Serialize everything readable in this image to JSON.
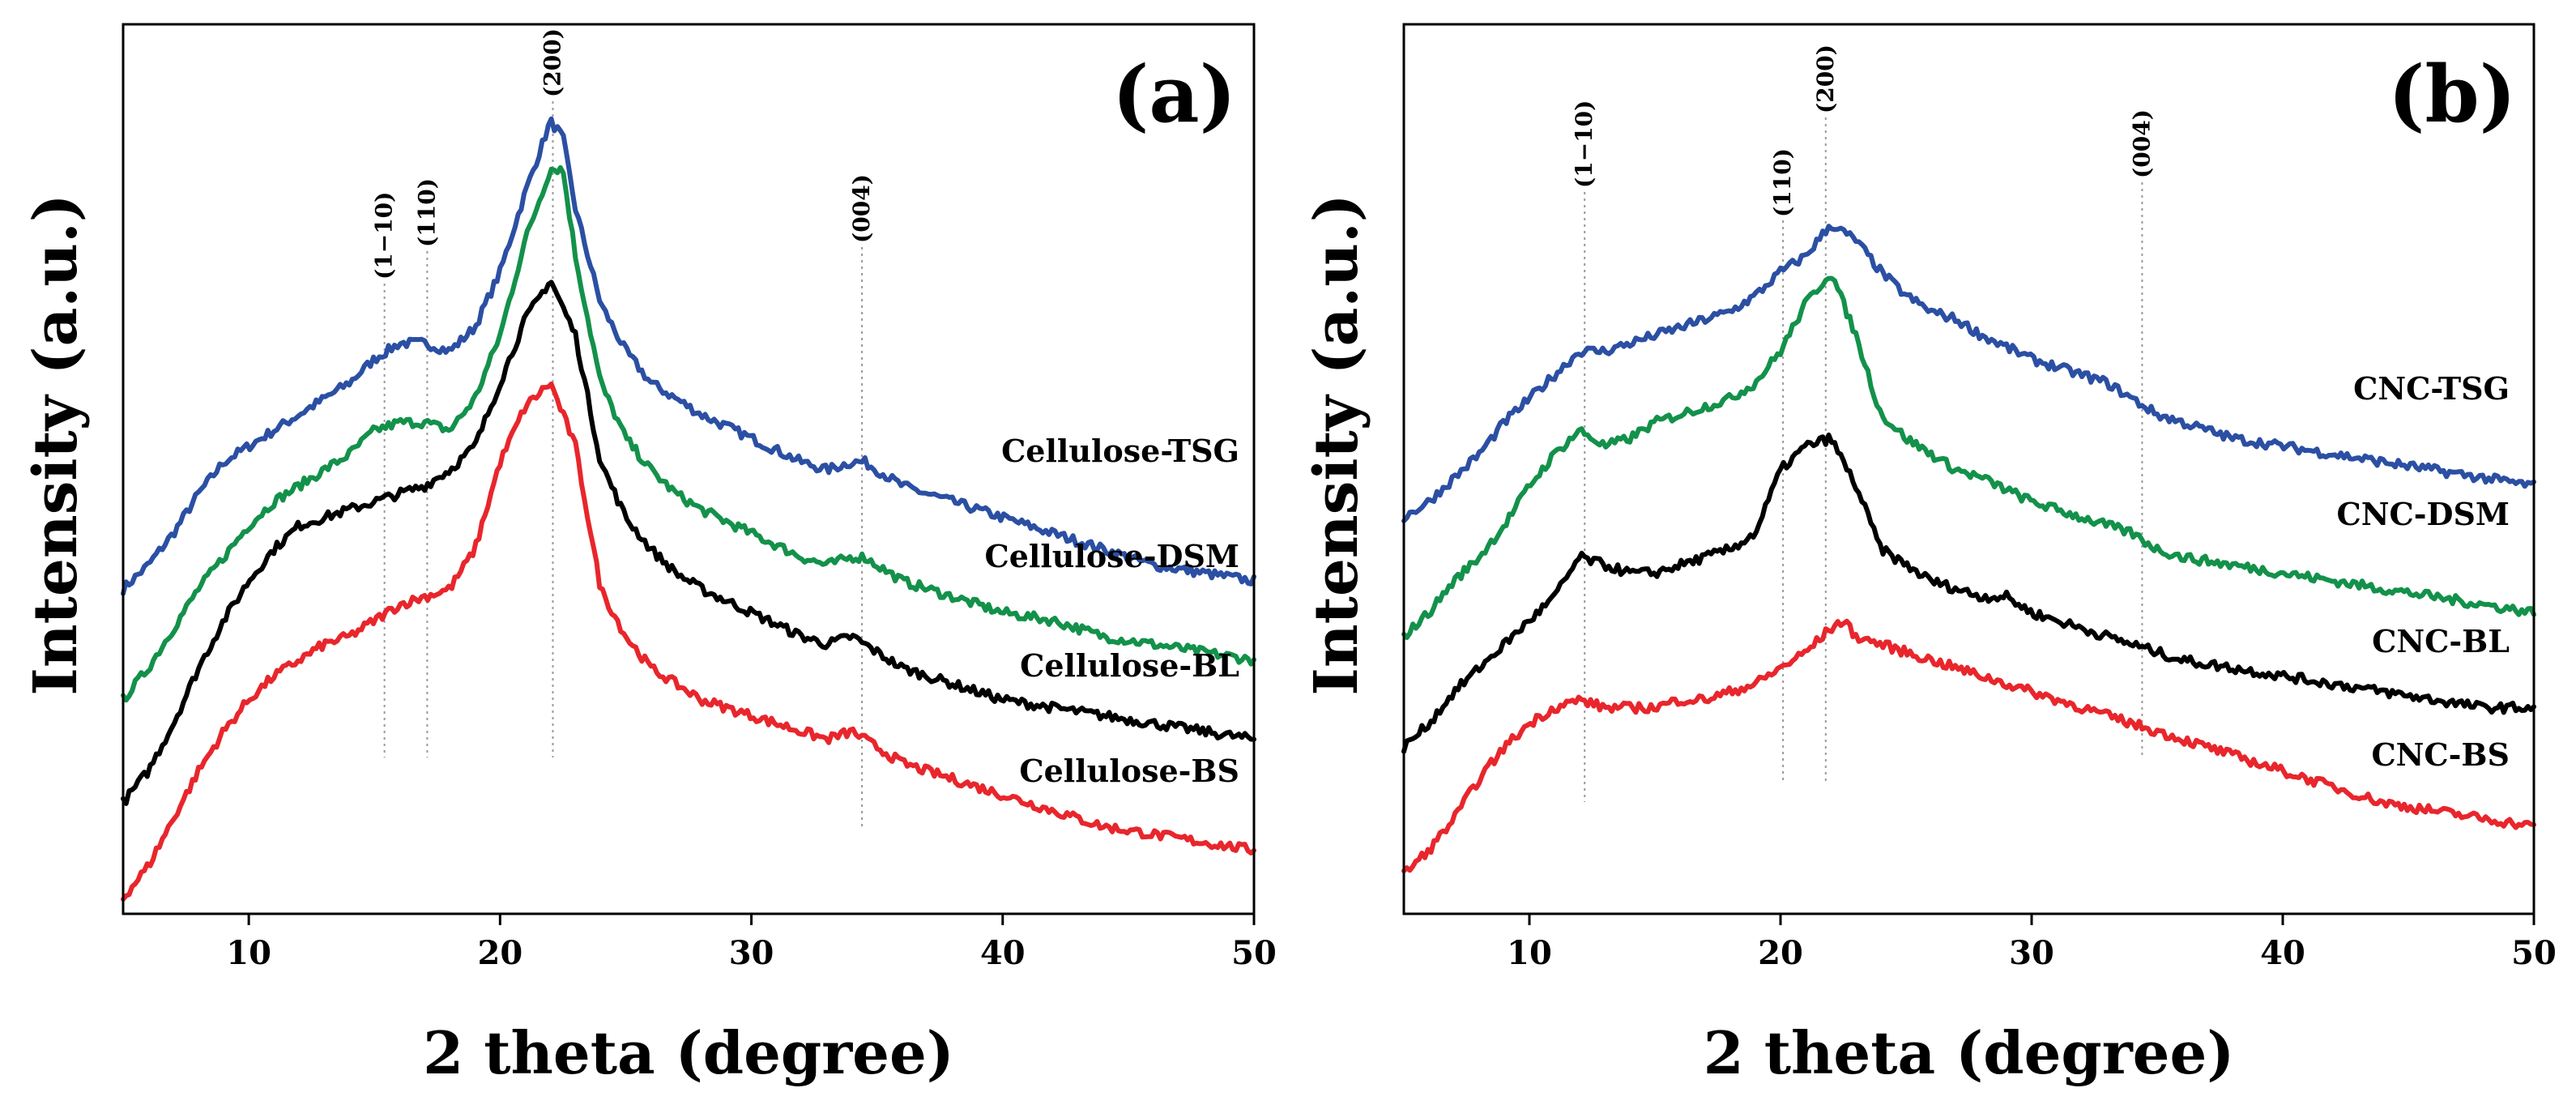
{
  "chart_data": [
    {
      "type": "line",
      "panel_label": "(a)",
      "xlabel": "2 theta (degree)",
      "ylabel": "Intensity (a.u.)",
      "xlim": [
        5,
        50
      ],
      "xticks": [
        10,
        20,
        30,
        40,
        50
      ],
      "reference_lines": [
        {
          "label": "(1−10)",
          "x": 15.4
        },
        {
          "label": "(110)",
          "x": 17.1
        },
        {
          "label": "(200)",
          "x": 22.1
        },
        {
          "label": "(004)",
          "x": 34.4
        }
      ],
      "series": [
        {
          "name": "Cellulose-TSG",
          "color": "#2b4fa3",
          "x": [
            5,
            6,
            7,
            8,
            9,
            10,
            11,
            12,
            13,
            14,
            15,
            16,
            17,
            18,
            19,
            20,
            21,
            22,
            22.5,
            23,
            24,
            25,
            26,
            27,
            28,
            30,
            32,
            33,
            34,
            34.5,
            35,
            36,
            38,
            40,
            42,
            44,
            46,
            48,
            50
          ],
          "y": [
            0.4,
            0.43,
            0.47,
            0.52,
            0.56,
            0.58,
            0.6,
            0.62,
            0.64,
            0.66,
            0.69,
            0.71,
            0.71,
            0.7,
            0.73,
            0.8,
            0.9,
            0.99,
            0.97,
            0.88,
            0.76,
            0.7,
            0.66,
            0.64,
            0.62,
            0.59,
            0.56,
            0.55,
            0.56,
            0.56,
            0.55,
            0.53,
            0.51,
            0.49,
            0.47,
            0.45,
            0.43,
            0.42,
            0.41
          ]
        },
        {
          "name": "Cellulose-DSM",
          "color": "#13914a",
          "x": [
            5,
            6,
            7,
            8,
            9,
            10,
            11,
            12,
            13,
            14,
            15,
            16,
            17,
            18,
            19,
            20,
            21,
            22,
            22.5,
            23,
            24,
            25,
            26,
            27,
            28,
            30,
            32,
            33,
            34,
            34.5,
            35,
            36,
            38,
            40,
            42,
            44,
            46,
            48,
            50
          ],
          "y": [
            0.26,
            0.3,
            0.35,
            0.4,
            0.44,
            0.48,
            0.51,
            0.53,
            0.55,
            0.57,
            0.6,
            0.61,
            0.61,
            0.6,
            0.64,
            0.72,
            0.84,
            0.93,
            0.93,
            0.82,
            0.66,
            0.59,
            0.55,
            0.52,
            0.5,
            0.47,
            0.44,
            0.43,
            0.44,
            0.44,
            0.43,
            0.41,
            0.39,
            0.37,
            0.36,
            0.34,
            0.33,
            0.32,
            0.31
          ]
        },
        {
          "name": "Cellulose-BL",
          "color": "#000000",
          "x": [
            5,
            6,
            7,
            8,
            9,
            10,
            11,
            12,
            13,
            14,
            15,
            16,
            17,
            18,
            19,
            20,
            21,
            22,
            23,
            24,
            25,
            26,
            27,
            28,
            30,
            32,
            33,
            34,
            34.5,
            35,
            36,
            38,
            40,
            42,
            44,
            46,
            48,
            50
          ],
          "y": [
            0.13,
            0.17,
            0.23,
            0.3,
            0.36,
            0.41,
            0.45,
            0.48,
            0.49,
            0.5,
            0.51,
            0.52,
            0.53,
            0.55,
            0.58,
            0.66,
            0.74,
            0.79,
            0.72,
            0.56,
            0.49,
            0.45,
            0.42,
            0.4,
            0.37,
            0.34,
            0.33,
            0.34,
            0.33,
            0.32,
            0.3,
            0.28,
            0.26,
            0.25,
            0.24,
            0.23,
            0.22,
            0.21
          ]
        },
        {
          "name": "Cellulose-BS",
          "color": "#e8262c",
          "x": [
            5,
            6,
            7,
            8,
            9,
            10,
            11,
            12,
            13,
            14,
            15,
            16,
            17,
            18,
            19,
            20,
            21,
            22,
            23,
            24,
            25,
            26,
            27,
            28,
            30,
            32,
            33,
            34,
            34.5,
            35,
            36,
            38,
            40,
            42,
            44,
            46,
            48,
            50
          ],
          "y": [
            0.01,
            0.05,
            0.11,
            0.17,
            0.22,
            0.26,
            0.29,
            0.31,
            0.33,
            0.34,
            0.36,
            0.38,
            0.39,
            0.4,
            0.45,
            0.56,
            0.63,
            0.66,
            0.58,
            0.4,
            0.34,
            0.3,
            0.28,
            0.26,
            0.24,
            0.22,
            0.21,
            0.22,
            0.21,
            0.2,
            0.18,
            0.16,
            0.14,
            0.12,
            0.1,
            0.09,
            0.08,
            0.07
          ]
        }
      ]
    },
    {
      "type": "line",
      "panel_label": "(b)",
      "xlabel": "2 theta (degree)",
      "ylabel": "Intensity (a.u.)",
      "xlim": [
        5,
        50
      ],
      "xticks": [
        10,
        20,
        30,
        40,
        50
      ],
      "reference_lines": [
        {
          "label": "(1−10)",
          "x": 12.2
        },
        {
          "label": "(110)",
          "x": 20.1
        },
        {
          "label": "(200)",
          "x": 21.8
        },
        {
          "label": "(004)",
          "x": 34.4
        }
      ],
      "series": [
        {
          "name": "CNC-TSG",
          "color": "#2b4fa3",
          "x": [
            5,
            6,
            7,
            8,
            9,
            10,
            11,
            12,
            13,
            14,
            15,
            16,
            17,
            18,
            19,
            20,
            21,
            22,
            23,
            24,
            25,
            26,
            27,
            28,
            30,
            32,
            33,
            34,
            35,
            36,
            38,
            40,
            42,
            44,
            46,
            48,
            50
          ],
          "y": [
            0.49,
            0.51,
            0.54,
            0.57,
            0.61,
            0.64,
            0.67,
            0.7,
            0.7,
            0.71,
            0.72,
            0.73,
            0.74,
            0.75,
            0.77,
            0.8,
            0.82,
            0.86,
            0.84,
            0.8,
            0.77,
            0.75,
            0.74,
            0.72,
            0.69,
            0.67,
            0.66,
            0.64,
            0.62,
            0.61,
            0.59,
            0.58,
            0.57,
            0.56,
            0.55,
            0.54,
            0.53
          ]
        },
        {
          "name": "CNC-DSM",
          "color": "#13914a",
          "x": [
            5,
            6,
            7,
            8,
            9,
            10,
            11,
            12,
            13,
            14,
            15,
            16,
            17,
            18,
            19,
            20,
            21,
            22,
            23,
            24,
            25,
            26,
            27,
            28,
            30,
            32,
            33,
            34,
            35,
            36,
            38,
            40,
            42,
            44,
            46,
            48,
            50
          ],
          "y": [
            0.34,
            0.37,
            0.41,
            0.44,
            0.48,
            0.53,
            0.57,
            0.6,
            0.58,
            0.59,
            0.61,
            0.62,
            0.63,
            0.64,
            0.66,
            0.7,
            0.76,
            0.8,
            0.72,
            0.62,
            0.59,
            0.57,
            0.55,
            0.54,
            0.51,
            0.49,
            0.48,
            0.47,
            0.45,
            0.44,
            0.43,
            0.42,
            0.41,
            0.4,
            0.39,
            0.38,
            0.37
          ]
        },
        {
          "name": "CNC-BL",
          "color": "#000000",
          "x": [
            5,
            6,
            7,
            8,
            9,
            10,
            11,
            12,
            13,
            14,
            15,
            16,
            17,
            18,
            19,
            20,
            21,
            22,
            23,
            24,
            25,
            26,
            27,
            28,
            29,
            30,
            32,
            33,
            34,
            35,
            36,
            38,
            40,
            42,
            44,
            46,
            48,
            50
          ],
          "y": [
            0.2,
            0.23,
            0.27,
            0.3,
            0.33,
            0.36,
            0.39,
            0.44,
            0.43,
            0.42,
            0.42,
            0.43,
            0.44,
            0.45,
            0.47,
            0.55,
            0.58,
            0.59,
            0.53,
            0.45,
            0.43,
            0.41,
            0.4,
            0.39,
            0.39,
            0.37,
            0.35,
            0.34,
            0.33,
            0.32,
            0.31,
            0.3,
            0.29,
            0.28,
            0.27,
            0.26,
            0.25,
            0.25
          ]
        },
        {
          "name": "CNC-BS",
          "color": "#e8262c",
          "x": [
            5,
            6,
            7,
            8,
            9,
            10,
            11,
            12,
            13,
            14,
            15,
            16,
            17,
            18,
            19,
            20,
            21,
            22,
            22.5,
            23,
            24,
            25,
            26,
            28,
            30,
            32,
            34,
            36,
            38,
            40,
            42,
            44,
            46,
            48,
            50
          ],
          "y": [
            0.04,
            0.07,
            0.11,
            0.16,
            0.2,
            0.23,
            0.25,
            0.26,
            0.25,
            0.25,
            0.25,
            0.26,
            0.26,
            0.27,
            0.28,
            0.3,
            0.32,
            0.35,
            0.36,
            0.34,
            0.33,
            0.32,
            0.31,
            0.29,
            0.27,
            0.25,
            0.23,
            0.21,
            0.19,
            0.17,
            0.15,
            0.13,
            0.12,
            0.11,
            0.1
          ]
        }
      ]
    }
  ]
}
